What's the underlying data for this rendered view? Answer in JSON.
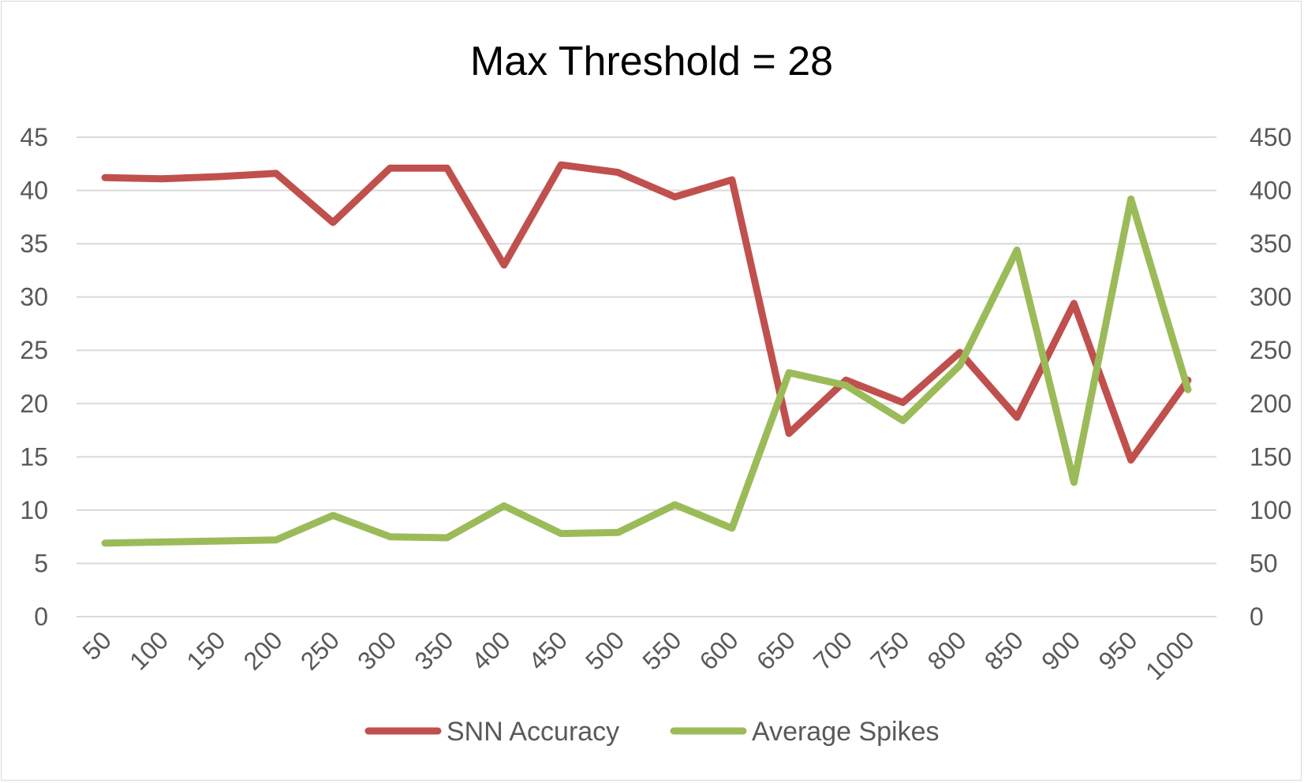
{
  "chart_data": {
    "type": "line",
    "title": "Max Threshold = 28",
    "xlabel": "",
    "ylabel": "",
    "y2label": "",
    "categories": [
      "50",
      "100",
      "150",
      "200",
      "250",
      "300",
      "350",
      "400",
      "450",
      "500",
      "550",
      "600",
      "650",
      "700",
      "750",
      "800",
      "850",
      "900",
      "950",
      "1000"
    ],
    "series": [
      {
        "name": "SNN Accuracy",
        "axis": "left",
        "color": "#c0504d",
        "values": [
          41.2,
          41.1,
          41.3,
          41.6,
          37.0,
          42.1,
          42.1,
          33.0,
          42.4,
          41.7,
          39.4,
          41.0,
          17.2,
          22.2,
          20.1,
          24.8,
          18.7,
          29.4,
          14.7,
          22.2
        ]
      },
      {
        "name": "Average Spikes",
        "axis": "right",
        "color": "#9bbb59",
        "values": [
          69,
          70,
          71,
          72,
          95,
          75,
          74,
          104,
          78,
          79,
          105,
          83,
          229,
          217,
          184,
          236,
          344,
          126,
          392,
          213
        ]
      }
    ],
    "ylim": [
      0,
      45
    ],
    "y_ticks": [
      0,
      5,
      10,
      15,
      20,
      25,
      30,
      35,
      40,
      45
    ],
    "y2lim": [
      0,
      450
    ],
    "y2_ticks": [
      0,
      50,
      100,
      150,
      200,
      250,
      300,
      350,
      400,
      450
    ],
    "grid": true,
    "legend_position": "bottom",
    "colors": {
      "grid": "#d9d9d9",
      "tick_text": "#595959",
      "title_text": "#000000",
      "legend_text": "#595959",
      "border": "#d9d9d9"
    }
  }
}
